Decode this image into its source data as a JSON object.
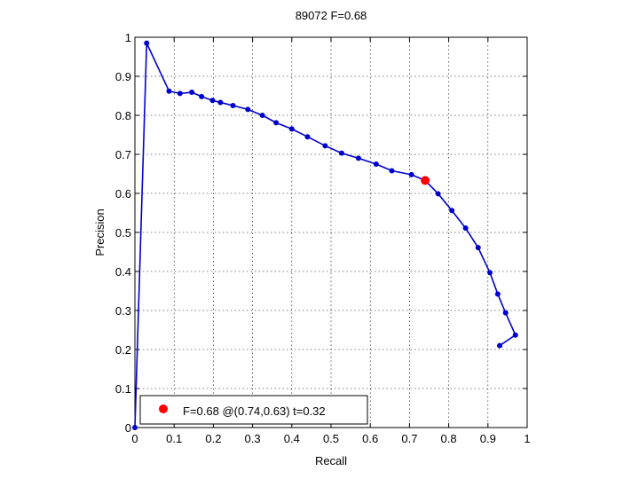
{
  "chart_data": {
    "type": "line",
    "title": "89072 F=0.68",
    "xlabel": "Recall",
    "ylabel": "Precision",
    "xlim": [
      0,
      1
    ],
    "ylim": [
      0,
      1
    ],
    "xticks": [
      "0",
      "0.1",
      "0.2",
      "0.3",
      "0.4",
      "0.5",
      "0.6",
      "0.7",
      "0.8",
      "0.9",
      "1"
    ],
    "yticks": [
      "0",
      "0.1",
      "0.2",
      "0.3",
      "0.4",
      "0.5",
      "0.6",
      "0.7",
      "0.8",
      "0.9",
      "1"
    ],
    "grid": true,
    "series": [
      {
        "color": "#0000cc",
        "points": [
          [
            0.0,
            0.0
          ],
          [
            0.03,
            0.985
          ],
          [
            0.087,
            0.862
          ],
          [
            0.115,
            0.856
          ],
          [
            0.145,
            0.859
          ],
          [
            0.17,
            0.848
          ],
          [
            0.198,
            0.838
          ],
          [
            0.218,
            0.833
          ],
          [
            0.25,
            0.825
          ],
          [
            0.288,
            0.815
          ],
          [
            0.325,
            0.8
          ],
          [
            0.36,
            0.781
          ],
          [
            0.4,
            0.765
          ],
          [
            0.44,
            0.745
          ],
          [
            0.485,
            0.722
          ],
          [
            0.527,
            0.703
          ],
          [
            0.57,
            0.69
          ],
          [
            0.615,
            0.675
          ],
          [
            0.655,
            0.658
          ],
          [
            0.705,
            0.648
          ],
          [
            0.74,
            0.633
          ],
          [
            0.773,
            0.599
          ],
          [
            0.808,
            0.556
          ],
          [
            0.843,
            0.511
          ],
          [
            0.875,
            0.461
          ],
          [
            0.905,
            0.397
          ],
          [
            0.925,
            0.342
          ],
          [
            0.945,
            0.294
          ],
          [
            0.97,
            0.237
          ],
          [
            0.93,
            0.21
          ]
        ]
      }
    ],
    "highlight": {
      "x": 0.74,
      "y": 0.633,
      "color": "#ff0000"
    },
    "legend": {
      "label": "F=0.68 @(0.74,0.63) t=0.32",
      "placement": "bottom-left"
    }
  }
}
